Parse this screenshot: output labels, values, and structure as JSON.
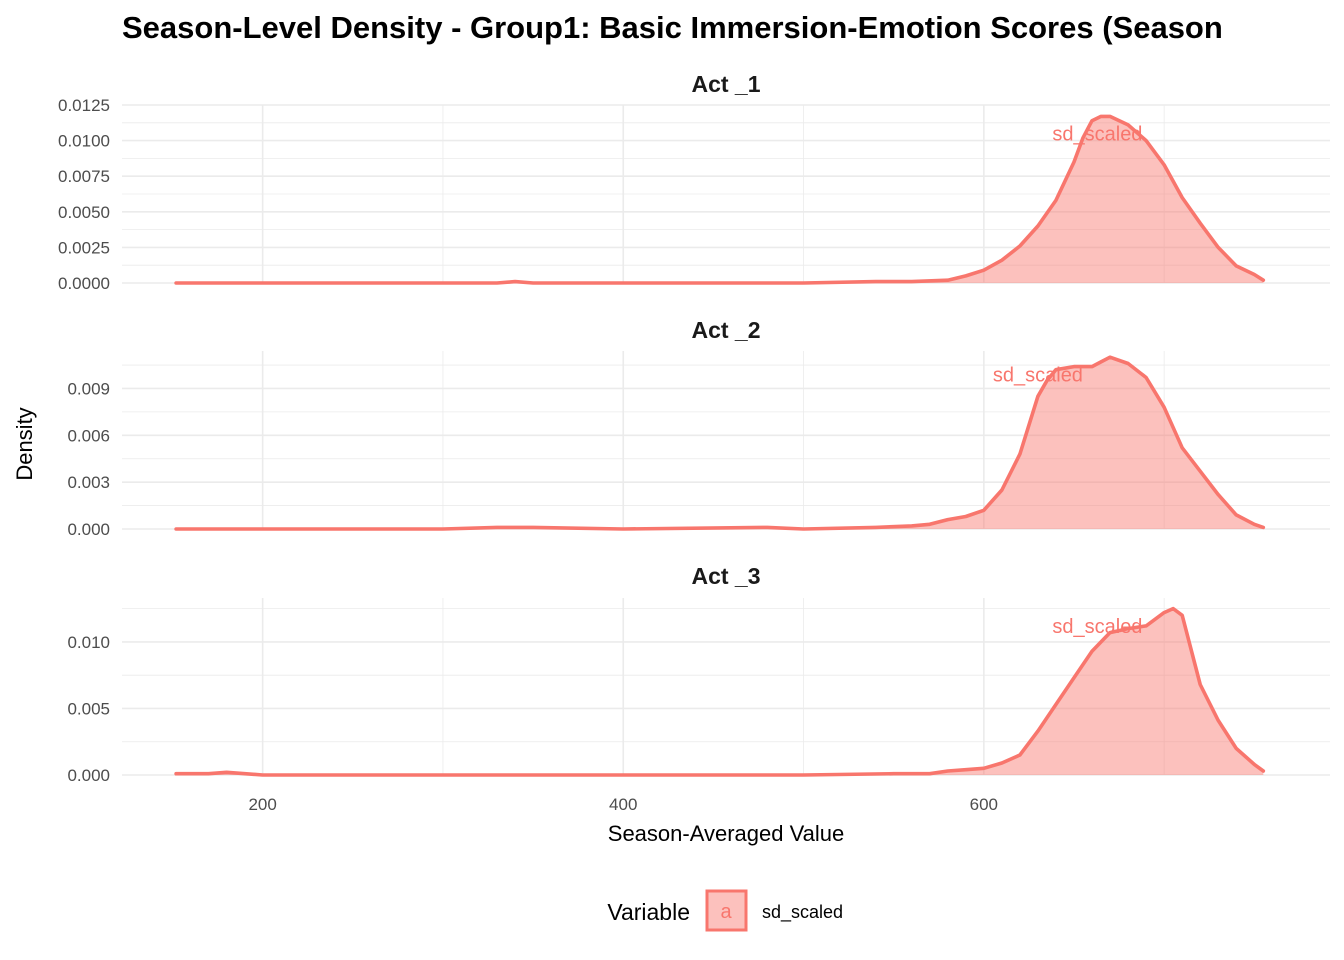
{
  "colors": {
    "line": "#F8766D",
    "fill": "#F8766D",
    "grid": "#EBEBEB"
  },
  "chart_data": {
    "type": "area",
    "title": "Season-Level Density - Group1: Basic Immersion-Emotion Scores (Season",
    "xlabel": "Season-Averaged Value",
    "ylabel": "Density",
    "xlim": [
      122,
      792
    ],
    "x_ticks": [
      200,
      400,
      600
    ],
    "x_tick_labels": [
      "200",
      "400",
      "600"
    ],
    "legend": {
      "title": "Variable",
      "placement": "bottom",
      "key_glyph": "a",
      "entries": [
        "sd_scaled"
      ]
    },
    "panels": [
      {
        "label": "Act _1",
        "ylim": [
          0,
          0.0125
        ],
        "y_ticks": [
          0,
          0.0025,
          0.005,
          0.0075,
          0.01,
          0.0125
        ],
        "y_tick_labels": [
          "0.0000",
          "0.0025",
          "0.0050",
          "0.0075",
          "0.0100",
          "0.0125"
        ],
        "annotation": {
          "text": "sd_scaled",
          "x": 663,
          "y": 0.0105
        },
        "series": [
          {
            "name": "sd_scaled",
            "x": [
              152,
              200,
              300,
              330,
              340,
              350,
              400,
              500,
              540,
              560,
              580,
              590,
              600,
              610,
              620,
              630,
              640,
              650,
              655,
              660,
              665,
              670,
              680,
              690,
              700,
              710,
              720,
              730,
              740,
              750,
              755
            ],
            "y": [
              0,
              0,
              0,
              0,
              0.0001,
              0,
              0,
              0,
              0.0001,
              0.0001,
              0.0002,
              0.0005,
              0.0009,
              0.0016,
              0.0026,
              0.004,
              0.0058,
              0.0085,
              0.0102,
              0.0114,
              0.0117,
              0.0117,
              0.0111,
              0.01,
              0.0083,
              0.006,
              0.0042,
              0.0025,
              0.0012,
              0.0006,
              0.0002
            ]
          }
        ]
      },
      {
        "label": "Act _2",
        "ylim": [
          0,
          0.0114
        ],
        "y_ticks": [
          0,
          0.003,
          0.006,
          0.009
        ],
        "y_tick_labels": [
          "0.000",
          "0.003",
          "0.006",
          "0.009"
        ],
        "annotation": {
          "text": "sd_scaled",
          "x": 630,
          "y": 0.0099
        },
        "series": [
          {
            "name": "sd_scaled",
            "x": [
              152,
              200,
              300,
              330,
              340,
              350,
              400,
              480,
              500,
              540,
              560,
              570,
              580,
              590,
              600,
              610,
              620,
              630,
              635,
              640,
              650,
              660,
              665,
              670,
              680,
              690,
              700,
              710,
              720,
              730,
              740,
              750,
              755
            ],
            "y": [
              0,
              0,
              0,
              0.0001,
              0.0001,
              0.0001,
              0,
              0.0001,
              0,
              0.0001,
              0.0002,
              0.0003,
              0.0006,
              0.0008,
              0.0012,
              0.0025,
              0.0048,
              0.0085,
              0.0095,
              0.0102,
              0.0104,
              0.0104,
              0.0107,
              0.011,
              0.0106,
              0.0097,
              0.0078,
              0.0052,
              0.0037,
              0.0022,
              0.0009,
              0.0003,
              0.0001
            ]
          }
        ]
      },
      {
        "label": "Act _3",
        "ylim": [
          0,
          0.0133
        ],
        "y_ticks": [
          0,
          0.005,
          0.01
        ],
        "y_tick_labels": [
          "0.000",
          "0.005",
          "0.010"
        ],
        "annotation": {
          "text": "sd_scaled",
          "x": 663,
          "y": 0.0112
        },
        "series": [
          {
            "name": "sd_scaled",
            "x": [
              152,
              170,
              180,
              200,
              300,
              400,
              500,
              550,
              560,
              570,
              580,
              590,
              600,
              610,
              620,
              630,
              640,
              650,
              660,
              670,
              680,
              690,
              700,
              705,
              710,
              720,
              730,
              740,
              750,
              755
            ],
            "y": [
              0.0001,
              0.0001,
              0.0002,
              0,
              0,
              0,
              0,
              0.0001,
              0.0001,
              0.0001,
              0.0003,
              0.0004,
              0.0005,
              0.0009,
              0.0015,
              0.0033,
              0.0053,
              0.0073,
              0.0093,
              0.0107,
              0.011,
              0.0112,
              0.0122,
              0.0125,
              0.012,
              0.0068,
              0.0041,
              0.002,
              0.0008,
              0.0003
            ]
          }
        ]
      }
    ]
  }
}
